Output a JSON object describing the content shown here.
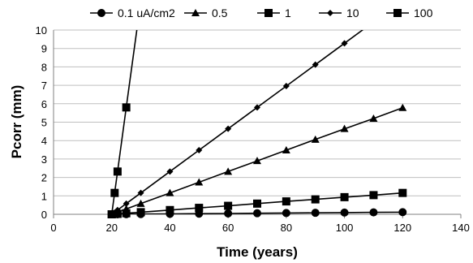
{
  "chart_data": {
    "type": "line",
    "xlabel": "Time (years)",
    "ylabel": "Pcorr (mm)",
    "xlim": [
      0,
      140
    ],
    "ylim": [
      0,
      10
    ],
    "xticks": [
      0,
      20,
      40,
      60,
      80,
      100,
      120,
      140
    ],
    "yticks": [
      0,
      1,
      2,
      3,
      4,
      5,
      6,
      7,
      8,
      9,
      10
    ],
    "grid": "horizontal",
    "legend": "top",
    "line_color": "#000000",
    "series": [
      {
        "name": "0.1 uA/cm2",
        "marker": "circle",
        "x": [
          20,
          22,
          25,
          30,
          40,
          50,
          60,
          70,
          80,
          90,
          100,
          110,
          120
        ],
        "y": [
          0,
          0.002,
          0.006,
          0.012,
          0.023,
          0.035,
          0.046,
          0.058,
          0.07,
          0.081,
          0.093,
          0.104,
          0.116
        ]
      },
      {
        "name": "0.5",
        "marker": "triangle",
        "x": [
          20,
          22,
          25,
          30,
          40,
          50,
          60,
          70,
          80,
          90,
          100,
          110,
          120
        ],
        "y": [
          0,
          0.12,
          0.29,
          0.58,
          1.16,
          1.74,
          2.32,
          2.9,
          3.48,
          4.06,
          4.64,
          5.2,
          5.78
        ]
      },
      {
        "name": "1",
        "marker": "square",
        "x": [
          20,
          22,
          25,
          30,
          40,
          50,
          60,
          70,
          80,
          90,
          100,
          110,
          120
        ],
        "y": [
          0,
          0.023,
          0.058,
          0.116,
          0.23,
          0.35,
          0.46,
          0.58,
          0.7,
          0.81,
          0.93,
          1.04,
          1.16
        ]
      },
      {
        "name": "10",
        "marker": "diamond",
        "x": [
          20,
          22,
          25,
          30,
          40,
          50,
          60,
          70,
          80,
          90,
          100,
          110
        ],
        "y": [
          0,
          0.23,
          0.58,
          1.16,
          2.32,
          3.48,
          4.64,
          5.8,
          6.96,
          8.12,
          9.28,
          10.44
        ]
      },
      {
        "name": "100",
        "marker": "square",
        "x": [
          20,
          21,
          22,
          25,
          30
        ],
        "y": [
          0,
          1.16,
          2.32,
          5.8,
          11.6
        ]
      }
    ]
  }
}
